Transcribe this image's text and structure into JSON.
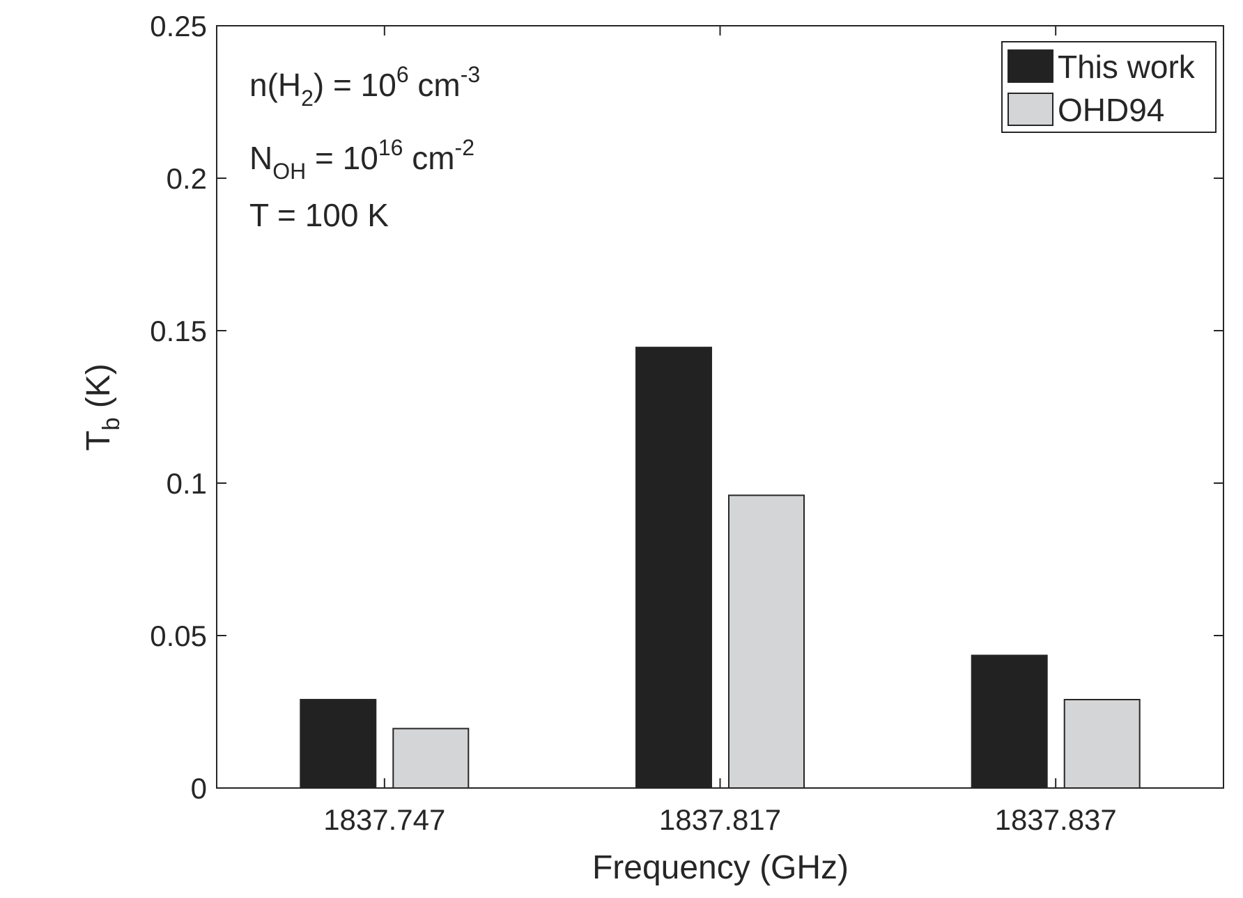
{
  "chart_data": {
    "type": "bar",
    "categories": [
      "1837.747",
      "1837.817",
      "1837.837"
    ],
    "series": [
      {
        "name": "This work",
        "color": "#222222",
        "values": [
          0.029,
          0.1445,
          0.0435
        ]
      },
      {
        "name": "OHD94",
        "color": "#d4d5d6",
        "values": [
          0.0195,
          0.096,
          0.029
        ]
      }
    ],
    "xlabel": "Frequency (GHz)",
    "ylabel": {
      "main": "T",
      "sub": "b",
      "rest": " (K)"
    },
    "ylim": [
      0,
      0.25
    ],
    "yticks": [
      "0",
      "0.05",
      "0.1",
      "0.15",
      "0.2",
      "0.25"
    ],
    "ytick_values": [
      0,
      0.05,
      0.1,
      0.15,
      0.2,
      0.25
    ],
    "grid": false,
    "legend_position": "top-right",
    "annotations": {
      "line1": {
        "a": "n(H",
        "b": "2",
        "c": ") = 10",
        "d": "6",
        "e": " cm",
        "f": "-3"
      },
      "line2": {
        "a": "N",
        "b": "OH",
        "c": " = 10",
        "d": "16",
        "e": " cm",
        "f": "-2"
      },
      "line3": "T = 100 K"
    }
  }
}
